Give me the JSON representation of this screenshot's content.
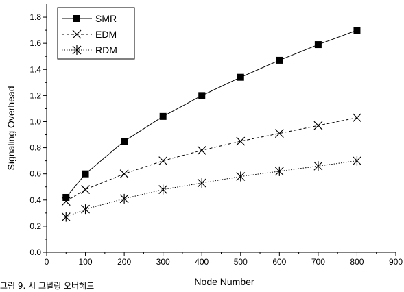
{
  "chart_data": {
    "type": "line",
    "xlabel": "Node Number",
    "ylabel": "Signaling Overhead",
    "xlim": [
      0,
      900
    ],
    "ylim": [
      0.0,
      1.9
    ],
    "xticks": [
      "0",
      "100",
      "200",
      "300",
      "400",
      "500",
      "600",
      "700",
      "800",
      "900"
    ],
    "yticks": [
      "0.0",
      "0.2",
      "0.4",
      "0.6",
      "0.8",
      "1.0",
      "1.2",
      "1.4",
      "1.6",
      "1.8"
    ],
    "x": [
      50,
      100,
      200,
      300,
      400,
      500,
      600,
      700,
      800
    ],
    "grid": false,
    "legend_position": "top-left",
    "series": [
      {
        "name": "SMR",
        "marker": "square",
        "line": "solid",
        "values": [
          0.42,
          0.6,
          0.85,
          1.04,
          1.2,
          1.34,
          1.47,
          1.59,
          1.7
        ]
      },
      {
        "name": "EDM",
        "marker": "x",
        "line": "dashed",
        "values": [
          0.39,
          0.48,
          0.6,
          0.7,
          0.78,
          0.85,
          0.91,
          0.97,
          1.03
        ]
      },
      {
        "name": "RDM",
        "marker": "star",
        "line": "dotted",
        "values": [
          0.27,
          0.33,
          0.41,
          0.48,
          0.53,
          0.58,
          0.62,
          0.66,
          0.7
        ]
      }
    ]
  },
  "caption": "그림 9. 시 그널링 오버헤드"
}
